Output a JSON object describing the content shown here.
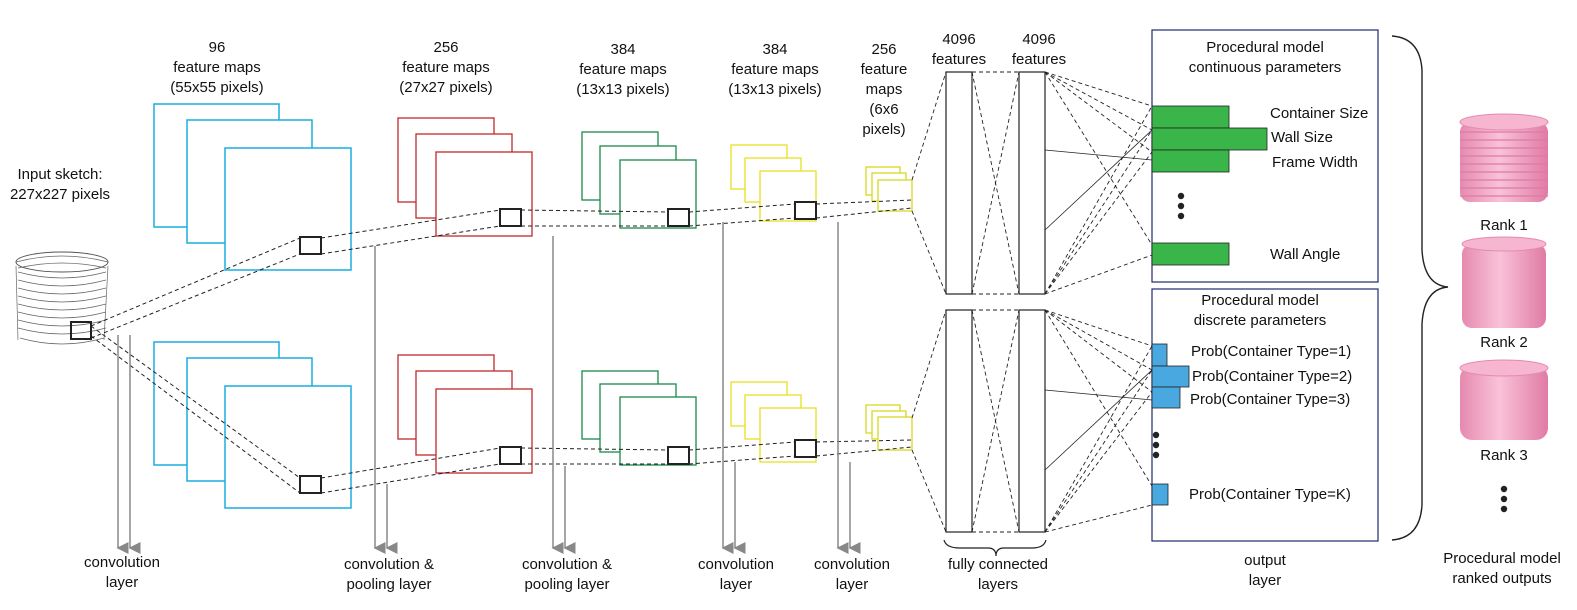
{
  "input": {
    "line1": "Input sketch:",
    "line2": "227x227 pixels"
  },
  "layers": [
    {
      "count": "96",
      "line2": "feature maps",
      "line3": "(55x55 pixels)"
    },
    {
      "count": "256",
      "line2": "feature maps",
      "line3": "(27x27 pixels)"
    },
    {
      "count": "384",
      "line2": "feature maps",
      "line3": "(13x13 pixels)"
    },
    {
      "count": "384",
      "line2": "feature maps",
      "line3": "(13x13 pixels)"
    },
    {
      "count": "256",
      "line2": "feature",
      "line3": "maps",
      "line4": "(6x6",
      "line5": "pixels)"
    }
  ],
  "fc": [
    {
      "count": "4096",
      "unit": "features"
    },
    {
      "count": "4096",
      "unit": "features"
    }
  ],
  "continuous": {
    "title1": "Procedural model",
    "title2": "continuous parameters",
    "params": [
      "Container Size",
      "Wall Size",
      "Frame Width",
      "Wall Angle"
    ]
  },
  "discrete": {
    "title1": "Procedural model",
    "title2": "discrete parameters",
    "params": [
      "Prob(Container Type=1)",
      "Prob(Container Type=2)",
      "Prob(Container Type=3)",
      "Prob(Container Type=K)"
    ]
  },
  "ranks": [
    "Rank 1",
    "Rank 2",
    "Rank 3"
  ],
  "bottom_labels": [
    {
      "l1": "convolution",
      "l2": "layer"
    },
    {
      "l1": "convolution &",
      "l2": "pooling layer"
    },
    {
      "l1": "convolution &",
      "l2": "pooling layer"
    },
    {
      "l1": "convolution",
      "l2": "layer"
    },
    {
      "l1": "convolution",
      "l2": "layer"
    },
    {
      "l1": "fully connected",
      "l2": "layers"
    },
    {
      "l1": "output",
      "l2": "layer"
    },
    {
      "l1": "Procedural model",
      "l2": "ranked outputs"
    }
  ],
  "colors": {
    "conv1": "#1aaee0",
    "conv2": "#c0282d",
    "conv3": "#1a8a4a",
    "conv4": "#e8e020",
    "conv5": "#d8d820",
    "continuous_bar": "#3ab54a",
    "discrete_bar": "#4aa8e0",
    "output_box": "#1f2a6e",
    "rank_pink": "#f4a6c4"
  }
}
